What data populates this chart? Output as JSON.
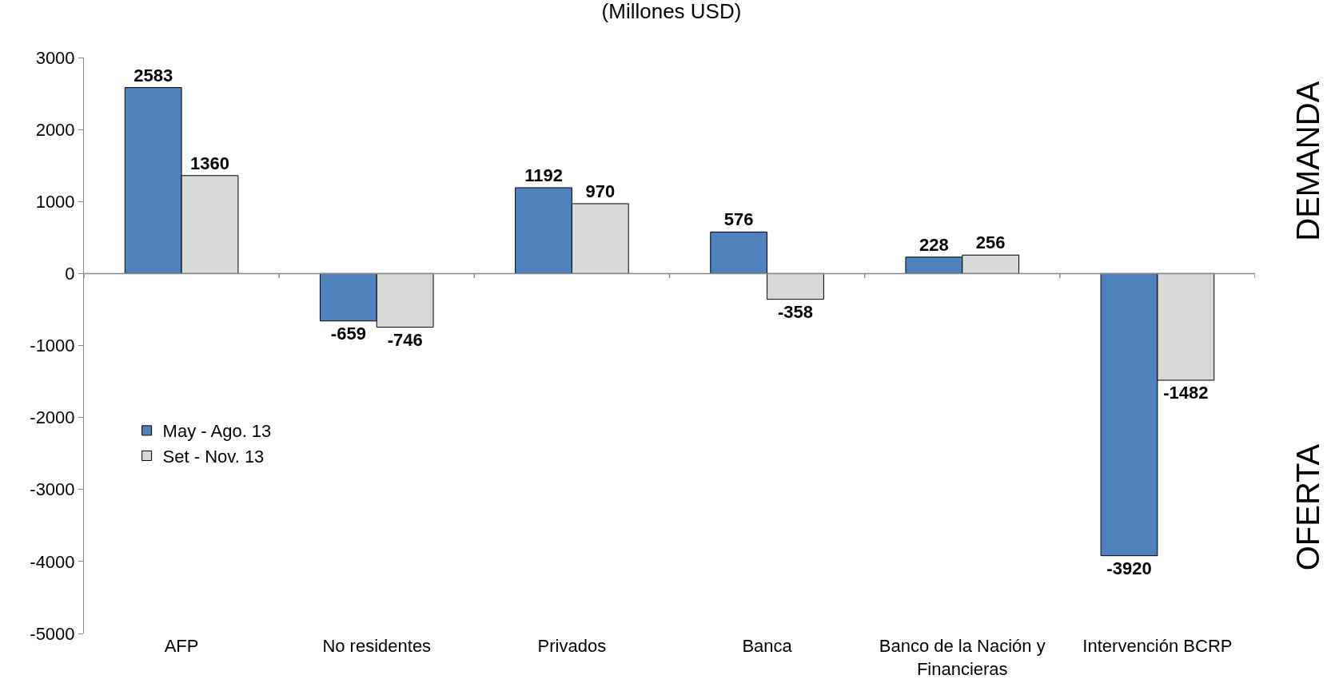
{
  "chart_data": {
    "type": "bar",
    "title": "(Millones USD)",
    "categories": [
      "AFP",
      "No residentes",
      "Privados",
      "Banca",
      "Banco de la Nación y Financieras",
      "Intervención BCRP"
    ],
    "series": [
      {
        "name": "May - Ago. 13",
        "color": "#4f81bd",
        "values": [
          2583,
          -659,
          1192,
          576,
          228,
          -3920
        ]
      },
      {
        "name": "Set - Nov. 13",
        "color": "#d9d9d9",
        "values": [
          1360,
          -746,
          970,
          -358,
          256,
          -1482
        ]
      }
    ],
    "ylim": [
      -5000,
      3000
    ],
    "yticks": [
      -5000,
      -4000,
      -3000,
      -2000,
      -1000,
      0,
      1000,
      2000,
      3000
    ],
    "data_labels": true,
    "legend": "left",
    "annotations": [
      "DEMANDA",
      "OFERTA"
    ]
  }
}
